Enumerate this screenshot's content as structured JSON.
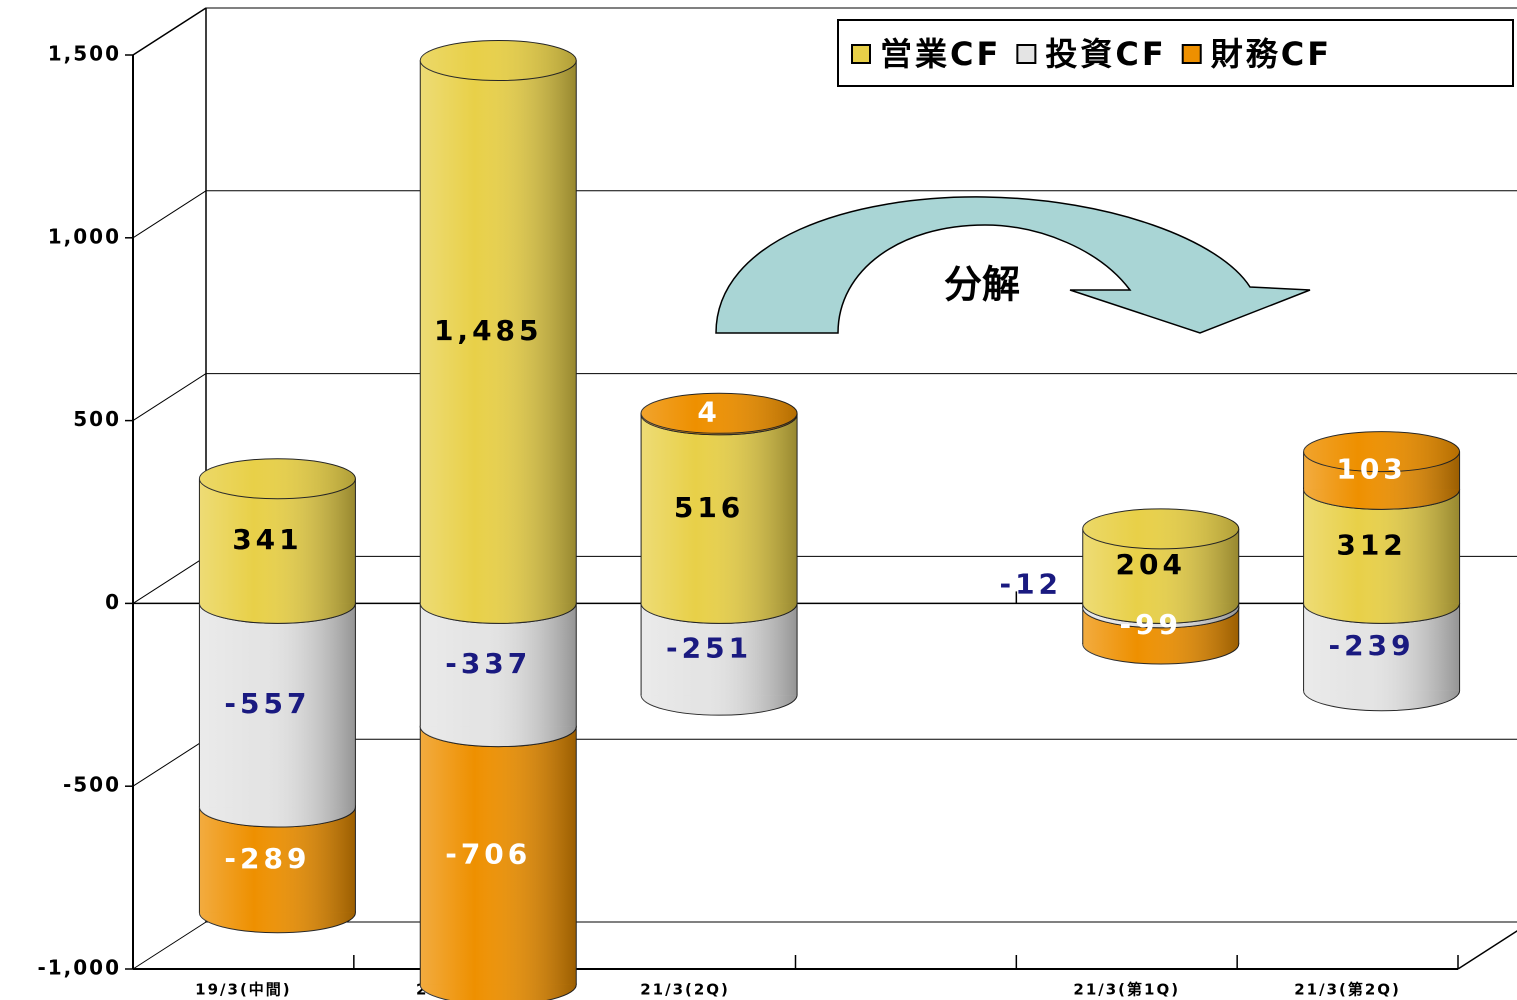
{
  "chart_data": {
    "type": "stacked-bar-3d",
    "annotation": "分解",
    "categories": [
      "19/3(中間)",
      "20/3(中間)",
      "21/3(2Q)",
      null,
      "21/3(第1Q)",
      "21/3(第2Q)"
    ],
    "series": [
      {
        "name": "営業CF",
        "color": "#e8d048",
        "values": [
          341,
          1485,
          516,
          null,
          204,
          312
        ],
        "value_labels": [
          "341",
          "1,485",
          "516",
          null,
          "204",
          "312"
        ],
        "label_color": "#000000"
      },
      {
        "name": "投資CF",
        "color": "#e4e4e4",
        "values": [
          -557,
          -337,
          -251,
          null,
          -12,
          -239
        ],
        "label_color": "#1a1a80"
      },
      {
        "name": "財務CF",
        "color": "#ee9000",
        "values": [
          -289,
          -706,
          4,
          null,
          -99,
          103
        ],
        "label_color": "#ffffff"
      }
    ],
    "ylim": [
      -1000,
      1500
    ],
    "yticks": [
      {
        "value": -1000,
        "label": "-1,000"
      },
      -500,
      0,
      500,
      {
        "value": 1000,
        "label": "1,000"
      },
      {
        "value": 1500,
        "label": "1,500"
      }
    ],
    "grid": true,
    "legend": "top-right"
  }
}
